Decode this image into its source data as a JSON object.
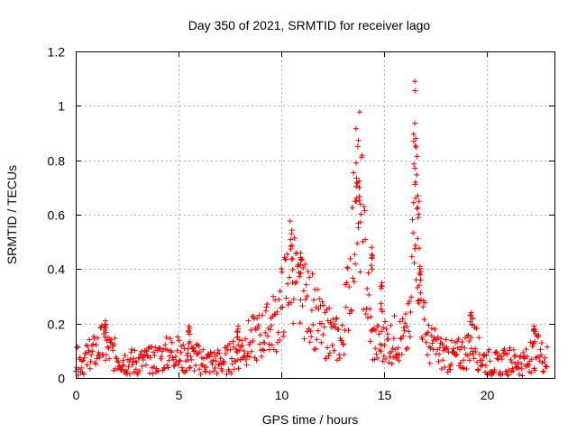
{
  "chart_data": {
    "type": "scatter",
    "title": "Day 350 of 2021, SRMTID for receiver lago",
    "xlabel": "GPS time / hours",
    "ylabel": "SRMTID / TECUs",
    "xlim": [
      0,
      23.3
    ],
    "ylim": [
      0,
      1.2
    ],
    "xticks": [
      0,
      5,
      10,
      15,
      20
    ],
    "xtick_labels": [
      "0",
      "5",
      "10",
      "15",
      "20"
    ],
    "yticks": [
      0,
      0.2,
      0.4,
      0.6,
      0.8,
      1.0,
      1.2
    ],
    "ytick_labels": [
      "0",
      "0.2",
      "0.4",
      "0.6",
      "0.8",
      "1",
      "1.2"
    ],
    "grid": true,
    "marker": "+",
    "series": [
      {
        "name": "SRMTID",
        "color": "#ee0000",
        "profile": {
          "x": [
            0.0,
            0.5,
            1.0,
            1.2,
            1.5,
            2.0,
            2.5,
            3.0,
            3.5,
            4.0,
            4.5,
            4.8,
            5.2,
            5.6,
            6.0,
            6.5,
            7.0,
            7.5,
            7.9,
            8.3,
            8.8,
            9.3,
            9.8,
            10.2,
            10.5,
            10.8,
            11.2,
            11.5,
            12.0,
            12.5,
            13.0,
            13.3,
            13.6,
            13.8,
            14.1,
            14.4,
            14.8,
            15.2,
            15.6,
            16.0,
            16.3,
            16.5,
            16.7,
            16.9,
            17.2,
            17.6,
            18.0,
            18.5,
            19.0,
            19.3,
            19.6,
            20.0,
            20.5,
            21.0,
            21.5,
            22.0,
            22.4,
            22.9
          ],
          "y": [
            0.06,
            0.07,
            0.1,
            0.12,
            0.11,
            0.08,
            0.06,
            0.06,
            0.06,
            0.07,
            0.09,
            0.1,
            0.07,
            0.08,
            0.07,
            0.06,
            0.06,
            0.07,
            0.1,
            0.13,
            0.15,
            0.17,
            0.22,
            0.32,
            0.45,
            0.3,
            0.27,
            0.25,
            0.18,
            0.15,
            0.13,
            0.35,
            0.6,
            0.7,
            0.4,
            0.14,
            0.12,
            0.13,
            0.15,
            0.14,
            0.2,
            0.8,
            0.4,
            0.2,
            0.12,
            0.1,
            0.08,
            0.08,
            0.1,
            0.15,
            0.09,
            0.06,
            0.05,
            0.06,
            0.06,
            0.06,
            0.1,
            0.07
          ]
        },
        "spikes": [
          {
            "x": 1.45,
            "y": 0.21
          },
          {
            "x": 5.5,
            "y": 0.19
          },
          {
            "x": 7.9,
            "y": 0.19
          },
          {
            "x": 10.5,
            "y": 0.53
          },
          {
            "x": 10.95,
            "y": 0.46
          },
          {
            "x": 13.65,
            "y": 0.79
          },
          {
            "x": 13.8,
            "y": 0.7
          },
          {
            "x": 14.4,
            "y": 0.48
          },
          {
            "x": 14.9,
            "y": 0.35
          },
          {
            "x": 16.5,
            "y": 1.09
          },
          {
            "x": 16.55,
            "y": 0.88
          },
          {
            "x": 16.65,
            "y": 0.67
          },
          {
            "x": 16.75,
            "y": 0.41
          },
          {
            "x": 19.25,
            "y": 0.24
          },
          {
            "x": 22.3,
            "y": 0.19
          }
        ],
        "sample_count": 760,
        "x_end": 22.95
      }
    ]
  }
}
